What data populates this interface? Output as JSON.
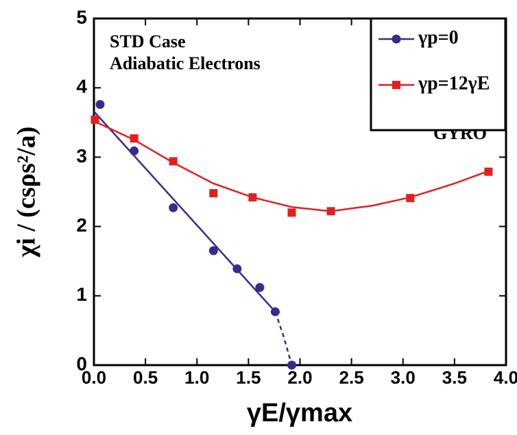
{
  "chart_data": {
    "type": "line",
    "x_label": "γE/γmax",
    "y_label": "χi / (csρs²/a)",
    "annotations": [
      "STD Case",
      "Adiabatic Electrons",
      "GYRO"
    ],
    "xlim": [
      0,
      4
    ],
    "ylim": [
      0,
      5
    ],
    "xticks": [
      {
        "value": 0,
        "label": "0.0"
      },
      0.5,
      {
        "value": 1,
        "label": "1.0"
      },
      1.5,
      {
        "value": 2,
        "label": "2.0"
      },
      2.5,
      {
        "value": 3,
        "label": "3.0"
      },
      3.5,
      {
        "value": 4,
        "label": "4.0"
      }
    ],
    "yticks": [
      0,
      1,
      2,
      3,
      4,
      5
    ],
    "legend": "upper right",
    "series": [
      {
        "name": "γp=0",
        "color": "#3a2a8c",
        "marker": "circle",
        "x": [
          0.06,
          0.39,
          0.77,
          1.16,
          1.39,
          1.61,
          1.76,
          1.92
        ],
        "values": [
          3.76,
          3.09,
          2.27,
          1.65,
          1.39,
          1.12,
          0.77,
          0
        ],
        "fit": [
          {
            "x": [
              0,
              1.76
            ],
            "y": [
              3.66,
              0.77
            ],
            "dashed": false
          },
          {
            "x": [
              1.76,
              1.84,
              1.92
            ],
            "y": [
              0.77,
              0.42,
              0
            ],
            "dashed": true
          }
        ]
      },
      {
        "name": "γp=12γE",
        "color": "#e02020",
        "marker": "square",
        "x": [
          0.01,
          0.39,
          0.77,
          1.16,
          1.54,
          1.92,
          2.3,
          3.07,
          3.83
        ],
        "values": [
          3.54,
          3.27,
          2.94,
          2.48,
          2.42,
          2.2,
          2.22,
          2.41,
          2.79
        ],
        "fit": [
          {
            "x": [
              0,
              0.39,
              0.77,
              1.16,
              1.54,
              1.92,
              2.3,
              2.7,
              3.07,
              3.5,
              3.83
            ],
            "y": [
              3.52,
              3.25,
              2.92,
              2.62,
              2.42,
              2.28,
              2.22,
              2.3,
              2.42,
              2.62,
              2.8
            ],
            "dashed": false
          }
        ]
      }
    ]
  }
}
